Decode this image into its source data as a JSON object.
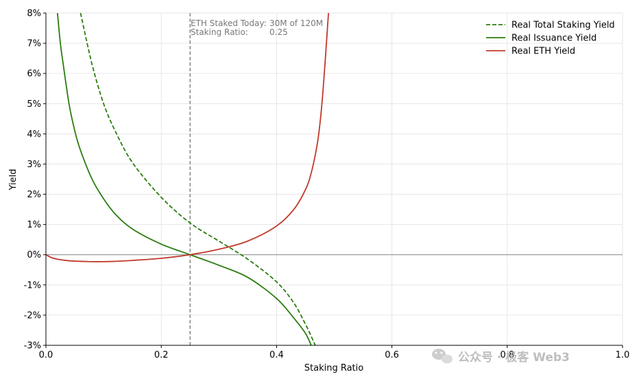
{
  "chart_data": {
    "type": "line",
    "xlabel": "Staking Ratio",
    "ylabel": "Yield",
    "xlim": [
      0.0,
      1.0
    ],
    "ylim": [
      -3,
      8
    ],
    "x_ticks": [
      "0.0",
      "0.2",
      "0.4",
      "0.6",
      "0.8",
      "1.0"
    ],
    "y_ticks": [
      "-3%",
      "-2%",
      "-1%",
      "0%",
      "1%",
      "2%",
      "3%",
      "4%",
      "5%",
      "6%",
      "7%",
      "8%"
    ],
    "grid": true,
    "legend_position": "top-right",
    "vline": {
      "x": 0.25,
      "style": "dashed",
      "color": "#777777"
    },
    "hline": {
      "y": 0,
      "color": "#888888"
    },
    "annotation": {
      "line1_label": "ETH Staked Today:",
      "line1_value": "30M of 120M",
      "line2_label": "Staking Ratio:",
      "line2_value": "0.25"
    },
    "series": [
      {
        "name": "Real Total Staking Yield",
        "color": "#2a7d0f",
        "style": "dashed",
        "x": [
          0.06,
          0.08,
          0.1,
          0.12,
          0.15,
          0.2,
          0.25,
          0.3,
          0.35,
          0.4,
          0.43,
          0.45,
          0.46,
          0.467
        ],
        "y": [
          8.0,
          6.3,
          5.0,
          4.1,
          3.05,
          1.9,
          1.05,
          0.45,
          -0.15,
          -0.9,
          -1.6,
          -2.3,
          -2.7,
          -3.0
        ]
      },
      {
        "name": "Real Issuance Yield",
        "color": "#2a7d0f",
        "style": "solid",
        "x": [
          0.02,
          0.025,
          0.03,
          0.04,
          0.05,
          0.06,
          0.08,
          0.1,
          0.12,
          0.15,
          0.2,
          0.25,
          0.3,
          0.35,
          0.4,
          0.43,
          0.45,
          0.46
        ],
        "y": [
          8.0,
          7.0,
          6.3,
          5.0,
          4.1,
          3.45,
          2.5,
          1.85,
          1.35,
          0.85,
          0.35,
          0.0,
          -0.35,
          -0.75,
          -1.45,
          -2.1,
          -2.6,
          -3.0
        ]
      },
      {
        "name": "Real ETH Yield",
        "color": "#c0392b",
        "style": "solid",
        "x": [
          0.0,
          0.01,
          0.02,
          0.04,
          0.06,
          0.08,
          0.1,
          0.12,
          0.15,
          0.2,
          0.25,
          0.3,
          0.35,
          0.4,
          0.43,
          0.45,
          0.46,
          0.47,
          0.475,
          0.48,
          0.485,
          0.49
        ],
        "y": [
          0.0,
          -0.1,
          -0.15,
          -0.2,
          -0.22,
          -0.23,
          -0.23,
          -0.22,
          -0.19,
          -0.12,
          0.0,
          0.18,
          0.45,
          0.95,
          1.5,
          2.15,
          2.7,
          3.6,
          4.3,
          5.3,
          6.6,
          8.0
        ]
      }
    ]
  },
  "watermark": {
    "text": "公众号 · 极客 Web3"
  }
}
